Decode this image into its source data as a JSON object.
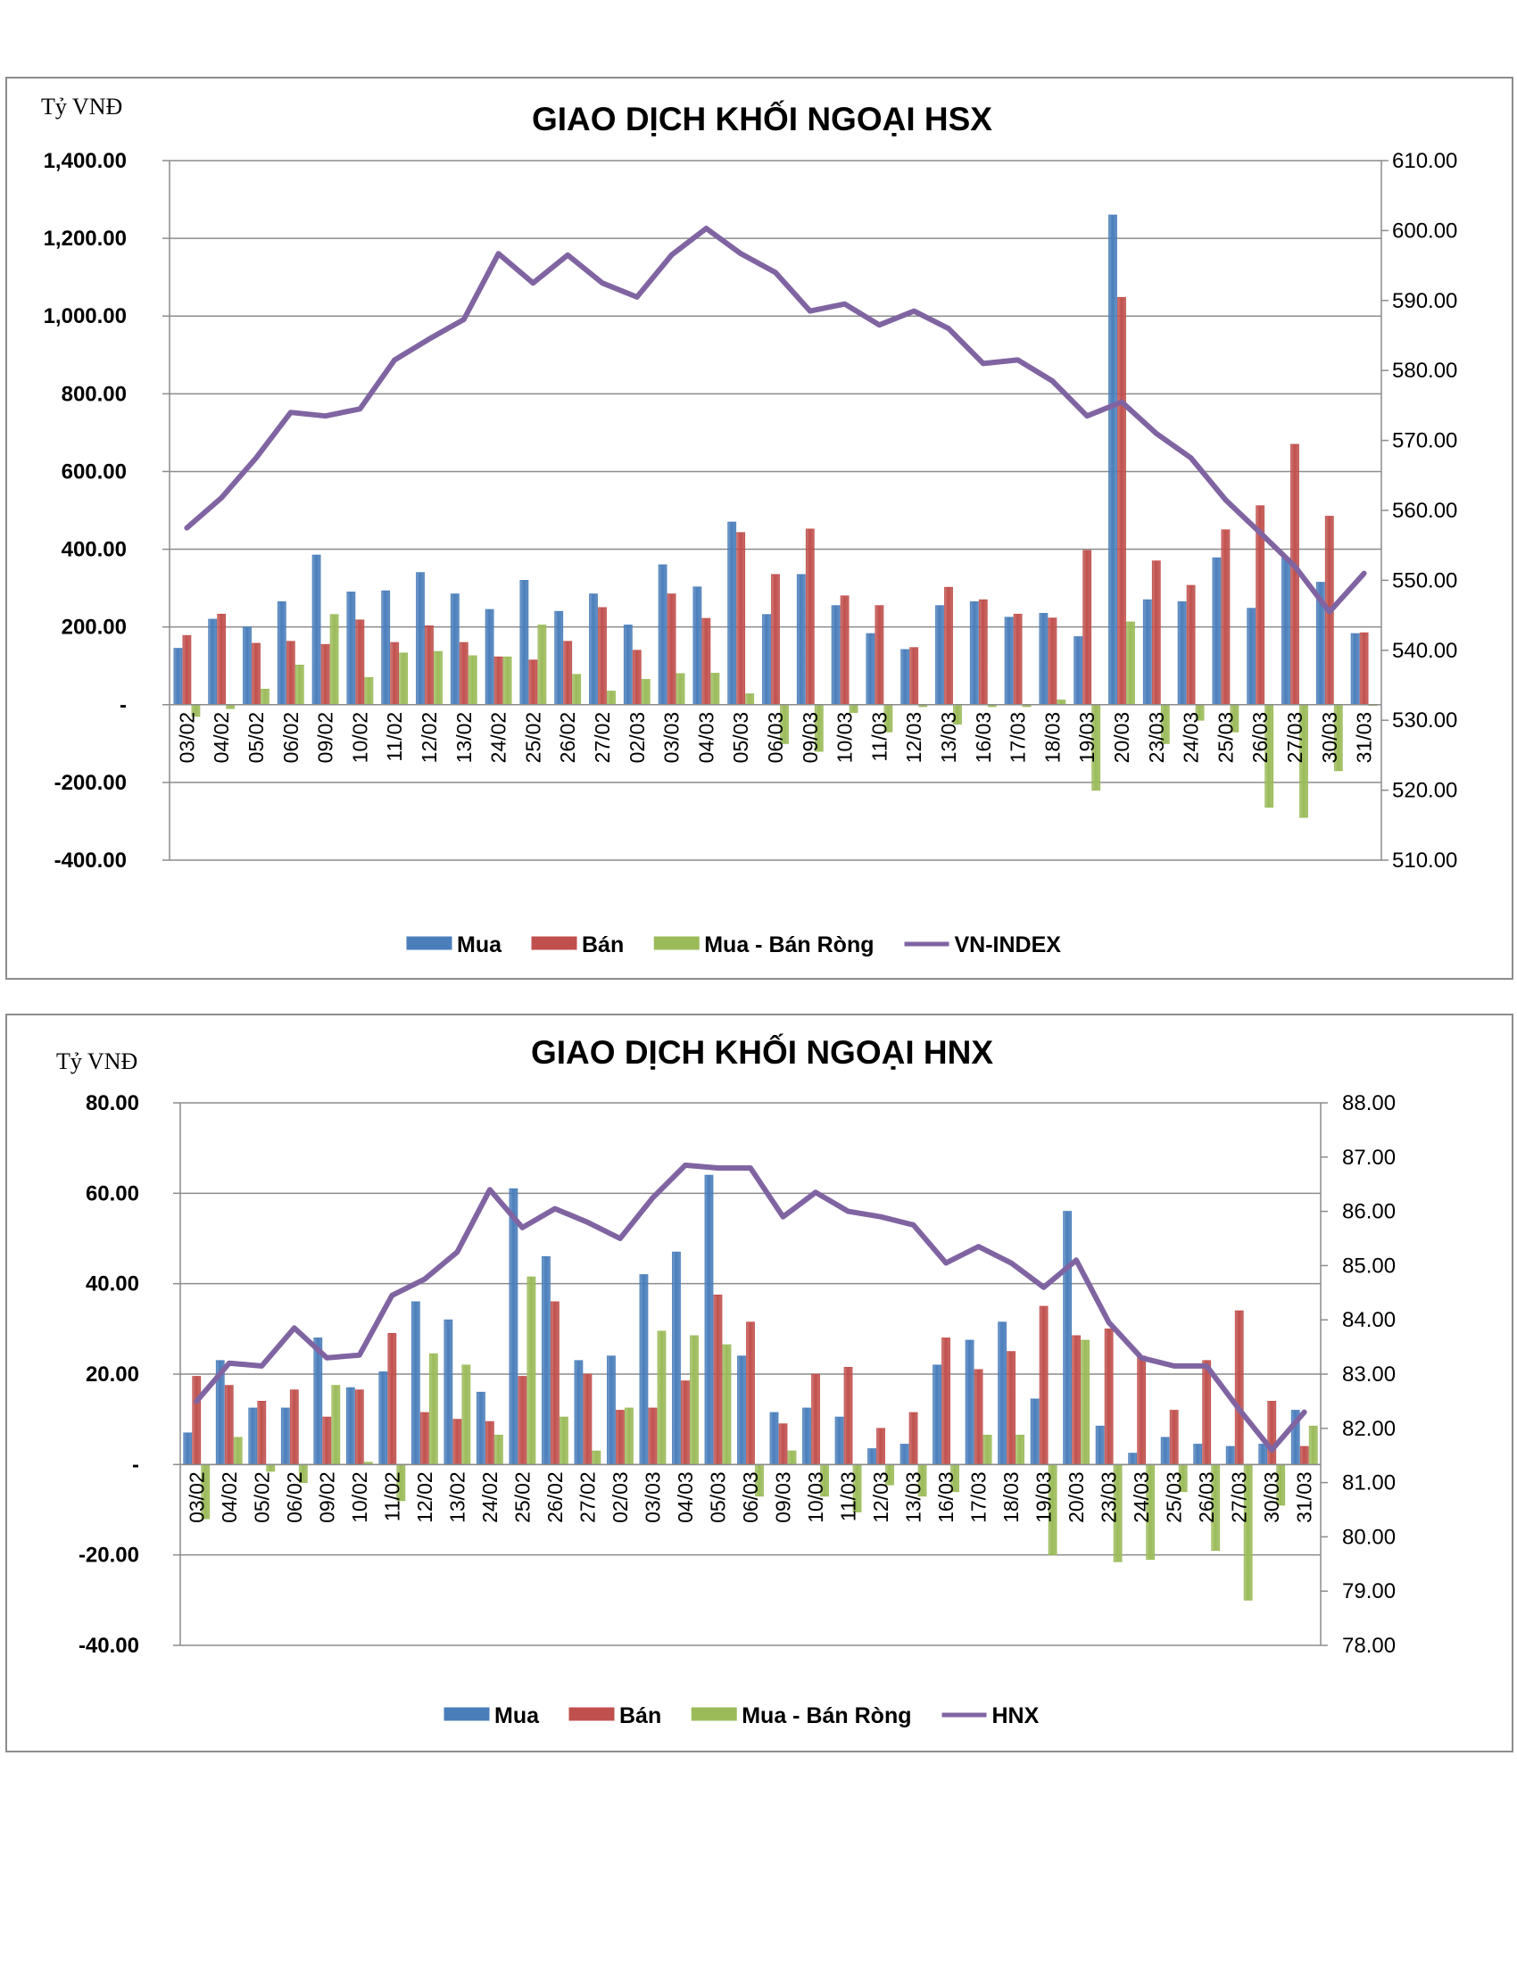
{
  "chart_data": [
    {
      "type": "bar",
      "title": "GIAO DỊCH KHỐI NGOẠI HSX",
      "unit_label": "Tỷ VNĐ",
      "ylim": [
        -400,
        1400
      ],
      "y2lim": [
        510,
        610
      ],
      "yticks": [
        "-400.00",
        "-200.00",
        "-",
        "200.00",
        "400.00",
        "600.00",
        "800.00",
        "1,000.00",
        "1,200.00",
        "1,400.00"
      ],
      "y2ticks": [
        "510.00",
        "520.00",
        "530.00",
        "540.00",
        "550.00",
        "560.00",
        "570.00",
        "580.00",
        "590.00",
        "600.00",
        "610.00"
      ],
      "categories": [
        "03/02",
        "04/02",
        "05/02",
        "06/02",
        "09/02",
        "10/02",
        "11/02",
        "12/02",
        "13/02",
        "24/02",
        "25/02",
        "26/02",
        "27/02",
        "02/03",
        "03/03",
        "04/03",
        "05/03",
        "06/03",
        "09/03",
        "10/03",
        "11/03",
        "12/03",
        "13/03",
        "16/03",
        "17/03",
        "18/03",
        "19/03",
        "20/03",
        "23/03",
        "24/03",
        "25/03",
        "26/03",
        "27/03",
        "30/03",
        "31/03"
      ],
      "legend_position": "bottom",
      "series": [
        {
          "name": "Mua",
          "kind": "bar",
          "color": "#4a7ebb",
          "values": [
            145,
            220,
            200,
            265,
            385,
            290,
            293,
            340,
            285,
            245,
            320,
            240,
            285,
            205,
            360,
            303,
            470,
            232,
            335,
            255,
            183,
            142,
            255,
            265,
            225,
            235,
            175,
            1260,
            270,
            265,
            378,
            248,
            378,
            315,
            183
          ]
        },
        {
          "name": "Bán",
          "kind": "bar",
          "color": "#c0504d",
          "values": [
            178,
            233,
            158,
            163,
            155,
            218,
            160,
            203,
            160,
            123,
            115,
            163,
            250,
            140,
            285,
            222,
            443,
            335,
            452,
            280,
            255,
            147,
            302,
            270,
            233,
            223,
            397,
            1048,
            370,
            307,
            450,
            512,
            670,
            485,
            185
          ]
        },
        {
          "name": "Mua - Bán Ròng",
          "kind": "bar",
          "color": "#9bbb59",
          "values": [
            -30,
            -10,
            40,
            102,
            232,
            70,
            133,
            137,
            126,
            123,
            205,
            78,
            35,
            65,
            80,
            81,
            28,
            -100,
            -120,
            -20,
            -70,
            -5,
            -50,
            -5,
            -5,
            12,
            -220,
            213,
            -100,
            -40,
            -70,
            -264,
            -290,
            -170,
            -2
          ]
        },
        {
          "name": "VN-INDEX",
          "kind": "line",
          "axis": "y2",
          "color": "#8064a2",
          "values": [
            557.5,
            561.8,
            567.5,
            574.0,
            573.5,
            574.5,
            581.5,
            584.5,
            587.3,
            596.7,
            592.5,
            596.5,
            592.5,
            590.5,
            596.5,
            600.3,
            596.7,
            594.0,
            588.5,
            589.5,
            586.5,
            588.5,
            586.0,
            581.0,
            581.5,
            578.5,
            573.5,
            575.5,
            571.0,
            567.5,
            561.5,
            556.8,
            552.0,
            545.5,
            551.0
          ]
        }
      ]
    },
    {
      "type": "bar",
      "title": "GIAO DỊCH KHỐI NGOẠI HNX",
      "unit_label": "Tỷ VNĐ",
      "ylim": [
        -40,
        80
      ],
      "y2lim": [
        78,
        88
      ],
      "yticks": [
        "-40.00",
        "-20.00",
        "-",
        "20.00",
        "40.00",
        "60.00",
        "80.00"
      ],
      "y2ticks": [
        "78.00",
        "79.00",
        "80.00",
        "81.00",
        "82.00",
        "83.00",
        "84.00",
        "85.00",
        "86.00",
        "87.00",
        "88.00"
      ],
      "categories": [
        "03/02",
        "04/02",
        "05/02",
        "06/02",
        "09/02",
        "10/02",
        "11/02",
        "12/02",
        "13/02",
        "24/02",
        "25/02",
        "26/02",
        "27/02",
        "02/03",
        "03/03",
        "04/03",
        "05/03",
        "06/03",
        "09/03",
        "10/03",
        "11/03",
        "12/03",
        "13/03",
        "16/03",
        "17/03",
        "18/03",
        "19/03",
        "20/03",
        "23/03",
        "24/03",
        "25/03",
        "26/03",
        "27/03",
        "30/03",
        "31/03"
      ],
      "legend_position": "bottom",
      "series": [
        {
          "name": "Mua",
          "kind": "bar",
          "color": "#4a7ebb",
          "values": [
            7,
            23,
            12.5,
            12.5,
            28,
            17,
            20.5,
            36,
            32,
            16,
            61,
            46,
            23,
            24,
            42,
            47,
            64,
            24,
            11.5,
            12.5,
            10.5,
            3.5,
            4.5,
            22,
            27.5,
            31.5,
            14.5,
            56,
            8.5,
            2.5,
            6,
            4.5,
            4,
            4.5,
            12
          ]
        },
        {
          "name": "Bán",
          "kind": "bar",
          "color": "#c0504d",
          "values": [
            19.5,
            17.5,
            14,
            16.5,
            10.5,
            16.5,
            29,
            11.5,
            10,
            9.5,
            19.5,
            36,
            20,
            12,
            12.5,
            18.5,
            37.5,
            31.5,
            9,
            20,
            21.5,
            8,
            11.5,
            28,
            21,
            25,
            35,
            28.5,
            30,
            24,
            12,
            23,
            34,
            14,
            4
          ]
        },
        {
          "name": "Mua - Bán Ròng",
          "kind": "bar",
          "color": "#9bbb59",
          "values": [
            -12,
            6,
            -1.5,
            -4,
            17.5,
            0.5,
            -8,
            24.5,
            22,
            6.5,
            41.5,
            10.5,
            3,
            12.5,
            29.5,
            28.5,
            26.5,
            -7,
            3,
            -7,
            -10.5,
            -4.5,
            -7,
            -6,
            6.5,
            6.5,
            -20,
            27.5,
            -21.5,
            -21,
            -6,
            -19,
            -30,
            -9,
            8.5
          ]
        },
        {
          "name": "HNX",
          "kind": "line",
          "axis": "y2",
          "color": "#8064a2",
          "values": [
            82.5,
            83.2,
            83.15,
            83.85,
            83.3,
            83.35,
            84.45,
            84.75,
            85.25,
            86.4,
            85.7,
            86.05,
            85.8,
            85.5,
            86.25,
            86.85,
            86.8,
            86.8,
            85.9,
            86.35,
            86.0,
            85.9,
            85.75,
            85.05,
            85.35,
            85.05,
            84.6,
            85.1,
            83.95,
            83.3,
            83.15,
            83.15,
            82.35,
            81.6,
            82.3
          ]
        }
      ]
    }
  ]
}
